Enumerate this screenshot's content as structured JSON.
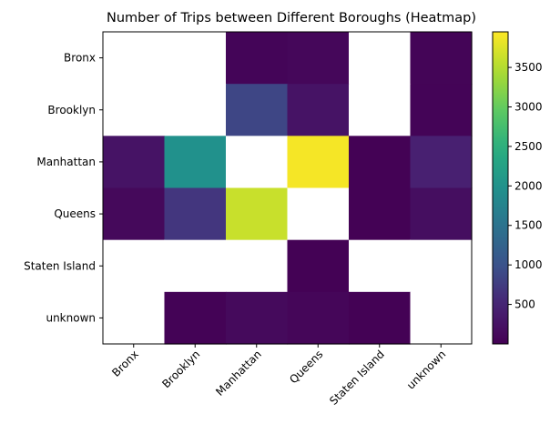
{
  "chart_data": {
    "type": "heatmap",
    "title": "Number of Trips between Different Boroughs (Heatmap)",
    "rows": [
      "Bronx",
      "Brooklyn",
      "Manhattan",
      "Queens",
      "Staten Island",
      "unknown"
    ],
    "columns": [
      "Bronx",
      "Brooklyn",
      "Manhattan",
      "Queens",
      "Staten Island",
      "unknown"
    ],
    "values": [
      [
        null,
        null,
        60,
        90,
        null,
        50
      ],
      [
        null,
        null,
        860,
        250,
        null,
        40
      ],
      [
        260,
        1980,
        null,
        3900,
        20,
        440
      ],
      [
        110,
        690,
        3620,
        null,
        20,
        180
      ],
      [
        null,
        null,
        null,
        20,
        null,
        null
      ],
      [
        null,
        30,
        120,
        70,
        20,
        null
      ]
    ],
    "missing_color": "#ffffff",
    "colormap": "viridis",
    "colorbar": {
      "min": 0,
      "max": 3950,
      "ticks": [
        500,
        1000,
        1500,
        2000,
        2500,
        3000,
        3500
      ]
    }
  }
}
